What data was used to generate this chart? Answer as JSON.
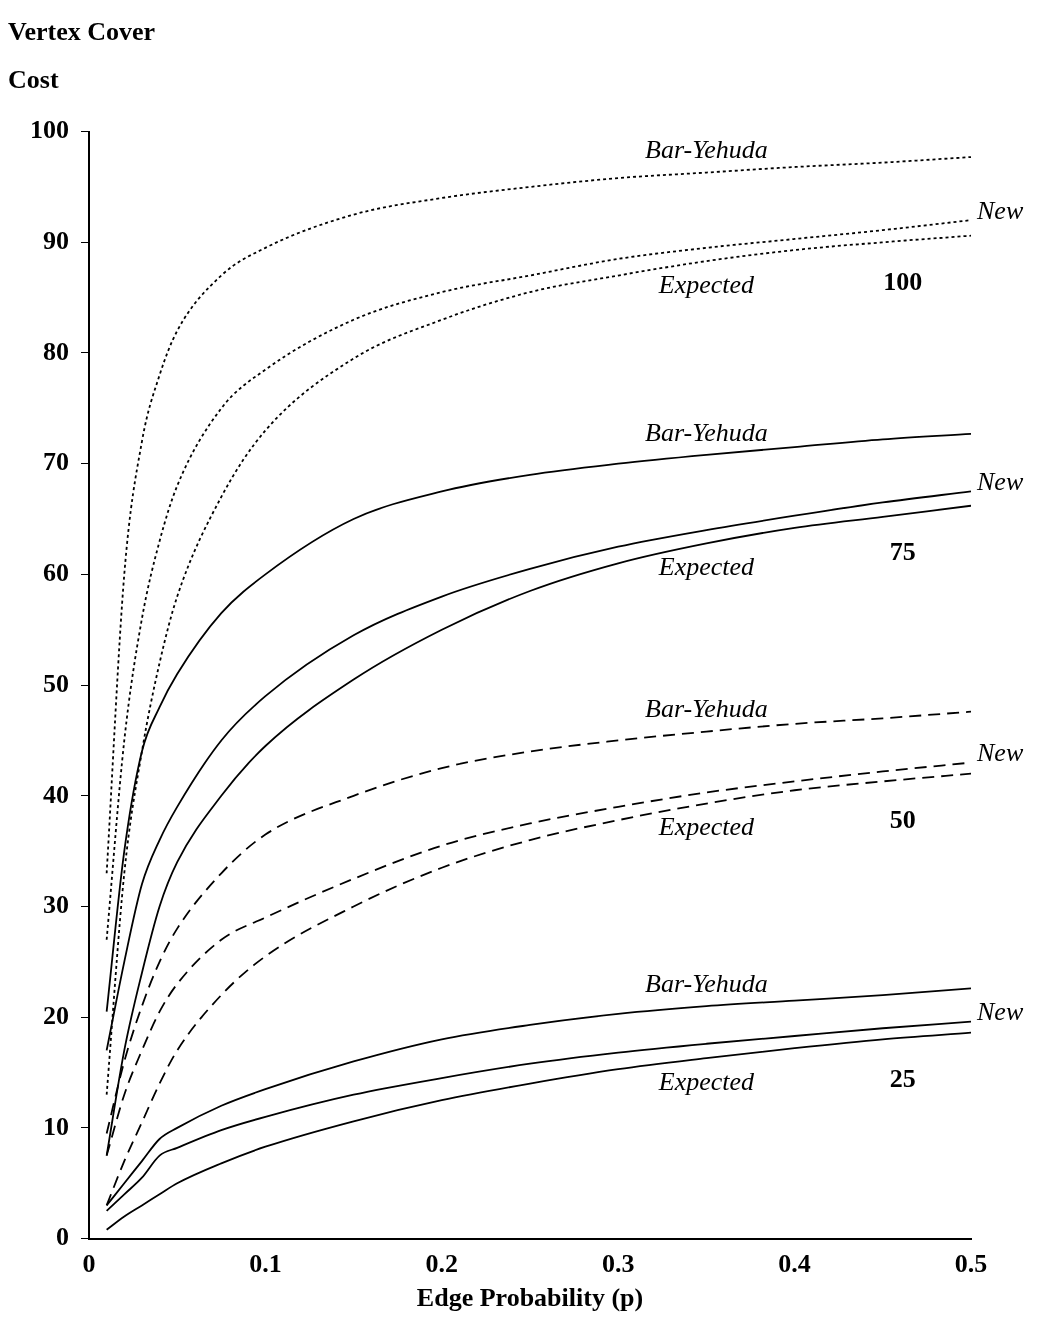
{
  "chart_data": {
    "type": "line",
    "ylabel": "Vertex Cover Cost",
    "xlabel": "Edge Probability (p)",
    "x": [
      0.01,
      0.02,
      0.03,
      0.04,
      0.05,
      0.075,
      0.1,
      0.15,
      0.2,
      0.25,
      0.3,
      0.35,
      0.4,
      0.45,
      0.5
    ],
    "xlim": [
      0,
      0.5
    ],
    "xticks": [
      0,
      0.1,
      0.2,
      0.3,
      0.4,
      0.5
    ],
    "ylim": [
      0,
      100
    ],
    "yticks": [
      0,
      10,
      20,
      30,
      40,
      50,
      60,
      70,
      80,
      90,
      100
    ],
    "grid": false,
    "legend": false,
    "marker": "none",
    "series": [
      {
        "name": "Bar-Yehuda",
        "color": "#000000",
        "line_style": "dotted",
        "values": [
          33,
          60,
          72,
          78,
          82,
          87,
          89.5,
          92.5,
          94,
          95,
          95.8,
          96.3,
          96.8,
          97.2,
          97.7
        ]
      },
      {
        "name": "New",
        "color": "#000000",
        "line_style": "dotted",
        "values": [
          27,
          45,
          56,
          63,
          68,
          75,
          78.5,
          83,
          85.5,
          87,
          88.5,
          89.5,
          90.3,
          91.1,
          92
        ]
      },
      {
        "name": "Expected",
        "color": "#000000",
        "line_style": "dotted",
        "values": [
          13,
          33,
          44,
          52,
          58,
          67,
          73,
          79.5,
          83,
          85.5,
          87,
          88.3,
          89.3,
          90,
          90.6
        ]
      },
      {
        "name": "Bar-Yehuda",
        "color": "#000000",
        "line_style": "solid",
        "values": [
          20.5,
          35,
          44,
          48,
          51,
          56.5,
          60,
          65,
          67.5,
          69,
          70,
          70.8,
          71.5,
          72.2,
          72.7
        ]
      },
      {
        "name": "New",
        "color": "#000000",
        "line_style": "solid",
        "values": [
          17,
          25,
          32,
          36,
          39,
          45,
          49,
          54.5,
          58,
          60.5,
          62.5,
          64,
          65.3,
          66.5,
          67.5
        ]
      },
      {
        "name": "Expected",
        "color": "#000000",
        "line_style": "solid",
        "values": [
          7.5,
          17,
          24,
          30,
          34,
          40,
          44.5,
          50.5,
          55,
          58.5,
          61,
          62.8,
          64.2,
          65.2,
          66.2
        ]
      },
      {
        "name": "Bar-Yehuda",
        "color": "#000000",
        "line_style": "dashed",
        "values": [
          9.5,
          16,
          21,
          25,
          28,
          33,
          36.5,
          40,
          42.5,
          44,
          45,
          45.8,
          46.5,
          47,
          47.6
        ]
      },
      {
        "name": "New",
        "color": "#000000",
        "line_style": "dashed",
        "values": [
          7.5,
          13,
          17,
          20.5,
          23,
          27,
          29,
          32.5,
          35.5,
          37.5,
          39,
          40.3,
          41.3,
          42.2,
          43
        ]
      },
      {
        "name": "Expected",
        "color": "#000000",
        "line_style": "dashed",
        "values": [
          3,
          7,
          10.5,
          14,
          17,
          22,
          25.5,
          30,
          33.5,
          36,
          37.8,
          39.3,
          40.5,
          41.3,
          42
        ]
      },
      {
        "name": "Bar-Yehuda",
        "color": "#000000",
        "line_style": "solid",
        "values": [
          3,
          5,
          7,
          9,
          10,
          12,
          13.5,
          16,
          18,
          19.3,
          20.3,
          21,
          21.5,
          22,
          22.6
        ]
      },
      {
        "name": "New",
        "color": "#000000",
        "line_style": "solid",
        "values": [
          2.5,
          4,
          5.5,
          7.5,
          8.2,
          9.8,
          11,
          13,
          14.5,
          15.8,
          16.8,
          17.6,
          18.3,
          19,
          19.6
        ]
      },
      {
        "name": "Expected",
        "color": "#000000",
        "line_style": "solid",
        "values": [
          0.8,
          2,
          3,
          4,
          5,
          6.8,
          8.3,
          10.6,
          12.5,
          14,
          15.3,
          16.3,
          17.2,
          18,
          18.6
        ]
      }
    ],
    "annotations": [
      "100",
      "75",
      "50",
      "25"
    ]
  }
}
